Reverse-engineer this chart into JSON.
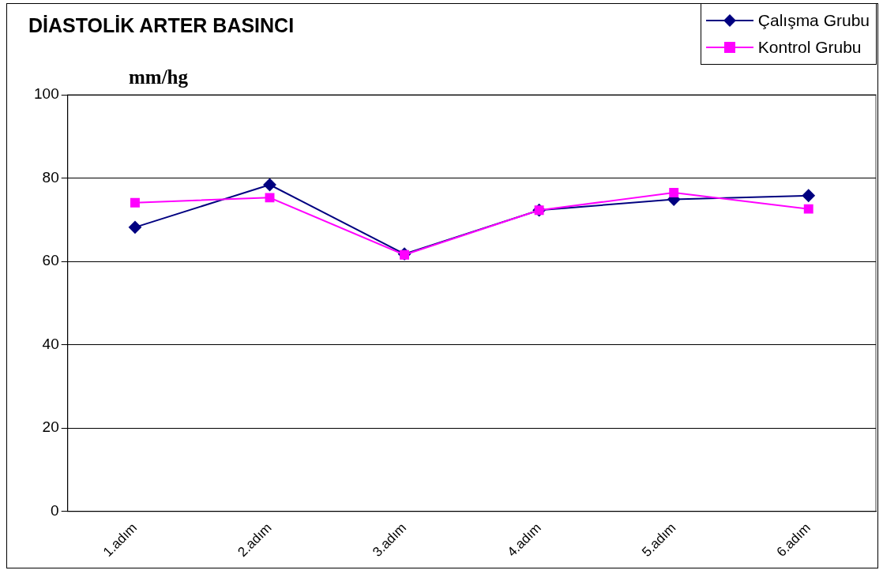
{
  "chart_data": {
    "type": "line",
    "title": "DİASTOLİK ARTER BASINCI",
    "ylabel": "mm/hg",
    "categories": [
      "1.adım",
      "2.adım",
      "3.adım",
      "4.adım",
      "5.adım",
      "6.adım"
    ],
    "series": [
      {
        "name": "Çalışma Grubu",
        "color": "#000080",
        "marker": "diamond",
        "values": [
          68.2,
          78.4,
          61.8,
          72.3,
          74.9,
          75.8
        ]
      },
      {
        "name": "Kontrol Grubu",
        "color": "#ff00ff",
        "marker": "square",
        "values": [
          74.1,
          75.3,
          61.6,
          72.3,
          76.5,
          72.6
        ]
      }
    ],
    "ylim": [
      0,
      100
    ],
    "yticks": [
      0,
      20,
      40,
      60,
      80,
      100
    ],
    "grid": "y",
    "legend": "top right",
    "line_style": "solid"
  }
}
